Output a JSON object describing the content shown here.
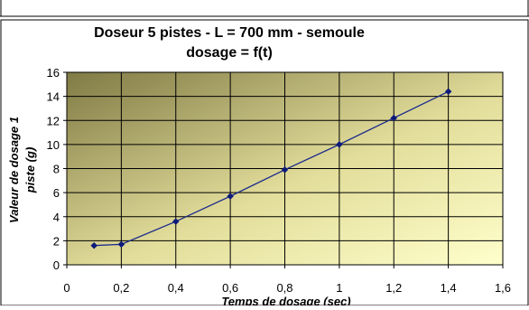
{
  "chart_data": {
    "type": "line",
    "title": "Doseur 5 pistes - L = 700 mm - semoule",
    "subtitle": "dosage = f(t)",
    "xlabel": "Temps de dosage (sec)",
    "ylabel_line1": "Valeur de dosage 1",
    "ylabel_line2": "piste (g)",
    "xlim": [
      0,
      1.6
    ],
    "ylim": [
      0,
      16
    ],
    "grid": true,
    "legend": "none",
    "x_ticks": [
      0,
      0.2,
      0.4,
      0.6,
      0.8,
      1,
      1.2,
      1.4,
      1.6
    ],
    "x_tick_labels": [
      "0",
      "0,2",
      "0,4",
      "0,6",
      "0,8",
      "1",
      "1,2",
      "1,4",
      "1,6"
    ],
    "y_ticks": [
      0,
      2,
      4,
      6,
      8,
      10,
      12,
      14,
      16
    ],
    "y_tick_labels": [
      "0",
      "2",
      "4",
      "6",
      "8",
      "10",
      "12",
      "14",
      "16"
    ],
    "series": [
      {
        "x": [
          0.1,
          0.2,
          0.4,
          0.6,
          0.8,
          1.0,
          1.2,
          1.4
        ],
        "y": [
          1.6,
          1.7,
          3.6,
          5.7,
          7.9,
          10.0,
          12.2,
          14.4
        ]
      }
    ],
    "colors": {
      "series": "#1a2a8c",
      "marker": "#0d1a7a",
      "plot_bg_dark": "#807a45",
      "plot_bg_light": "#ffffcc",
      "grid": "#000000",
      "frame": "#000000"
    }
  }
}
